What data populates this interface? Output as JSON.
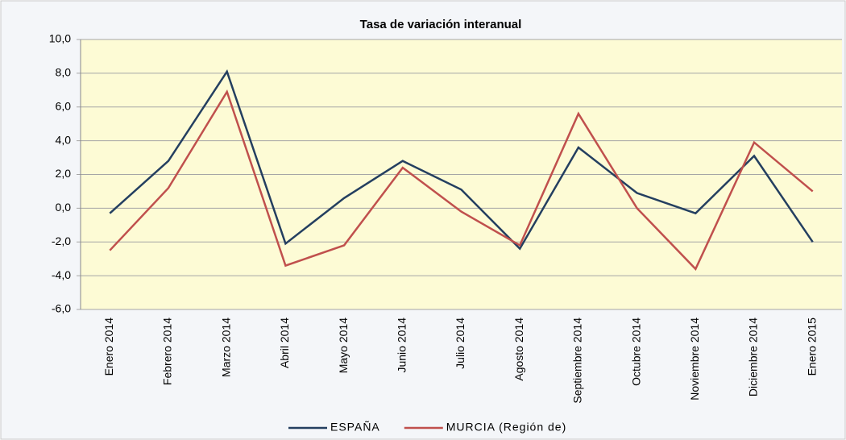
{
  "chart_data": {
    "type": "line",
    "title": "Tasa de variación interanual",
    "categories": [
      "Enero 2014",
      "Febrero 2014",
      "Marzo 2014",
      "Abril 2014",
      "Mayo 2014",
      "Junio 2014",
      "Julio 2014",
      "Agosto 2014",
      "Septiembre 2014",
      "Octubre 2014",
      "Noviembre 2014",
      "Diciembre 2014",
      "Enero 2015"
    ],
    "series": [
      {
        "name": "ESPAÑA",
        "color": "#243f60",
        "values": [
          -0.3,
          2.8,
          8.1,
          -2.1,
          0.6,
          2.8,
          1.1,
          -2.4,
          3.6,
          0.9,
          -0.3,
          3.1,
          -2.0
        ]
      },
      {
        "name": "MURCIA (Región de)",
        "color": "#c0504d",
        "values": [
          -2.5,
          1.2,
          6.9,
          -3.4,
          -2.2,
          2.4,
          -0.2,
          -2.2,
          5.6,
          0.0,
          -3.6,
          3.9,
          1.0
        ]
      }
    ],
    "ylim": [
      -6,
      10
    ],
    "yticks": [
      {
        "value": -6,
        "label": "-6,0"
      },
      {
        "value": -4,
        "label": "-4,0"
      },
      {
        "value": -2,
        "label": "-2,0"
      },
      {
        "value": 0,
        "label": "0,0"
      },
      {
        "value": 2,
        "label": "2,0"
      },
      {
        "value": 4,
        "label": "4,0"
      },
      {
        "value": 6,
        "label": "6,0"
      },
      {
        "value": 8,
        "label": "8,0"
      },
      {
        "value": 10,
        "label": "10,0"
      }
    ],
    "grid": true,
    "legend": "bottom"
  }
}
